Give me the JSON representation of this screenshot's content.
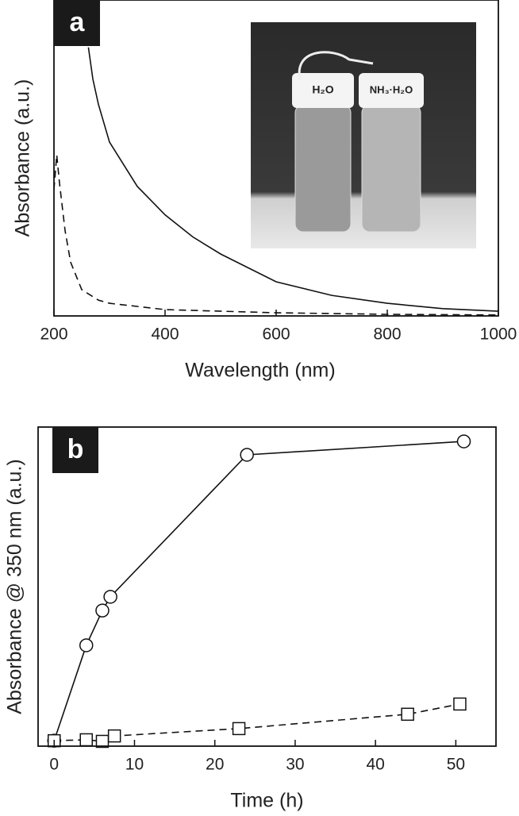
{
  "chart_data": [
    {
      "type": "line",
      "panel": "a",
      "x_label": "Wavelength (nm)",
      "y_label": "Absorbance (a.u.)",
      "xlim": [
        200,
        1000
      ],
      "xticks": [
        200,
        400,
        600,
        800,
        1000
      ],
      "ylim": [
        0,
        1
      ],
      "inset_labels": [
        "H₂O",
        "NH₃·H₂O"
      ],
      "series": [
        {
          "color": "#111111",
          "dash": false,
          "marker": "none",
          "x": [
            262,
            270,
            280,
            300,
            350,
            400,
            450,
            500,
            600,
            700,
            800,
            900,
            1000
          ],
          "values": [
            0.85,
            0.75,
            0.67,
            0.55,
            0.41,
            0.32,
            0.25,
            0.196,
            0.108,
            0.065,
            0.04,
            0.023,
            0.015
          ]
        },
        {
          "color": "#111111",
          "dash": true,
          "marker": "none",
          "x": [
            200,
            205,
            210,
            220,
            230,
            250,
            280,
            300,
            400,
            600,
            800,
            1000
          ],
          "values": [
            0.4,
            0.51,
            0.42,
            0.27,
            0.17,
            0.083,
            0.05,
            0.04,
            0.02,
            0.01,
            0.005,
            0.003
          ]
        }
      ]
    },
    {
      "type": "line",
      "panel": "b",
      "x_label": "Time (h)",
      "y_label": "Absorbance @ 350 nm (a.u.)",
      "xlim": [
        -2,
        55
      ],
      "xticks": [
        0,
        10,
        20,
        30,
        40,
        50
      ],
      "ylim": [
        0,
        1
      ],
      "series": [
        {
          "color": "#111111",
          "dash": false,
          "marker": "circle",
          "x": [
            0,
            4,
            6,
            7,
            24,
            51
          ],
          "values": [
            0.017,
            0.316,
            0.425,
            0.468,
            0.913,
            0.955
          ]
        },
        {
          "color": "#111111",
          "dash": true,
          "marker": "square",
          "x": [
            0,
            4,
            6,
            7.5,
            23,
            44,
            50.5
          ],
          "values": [
            0.017,
            0.02,
            0.015,
            0.032,
            0.055,
            0.1,
            0.132
          ]
        }
      ]
    }
  ]
}
